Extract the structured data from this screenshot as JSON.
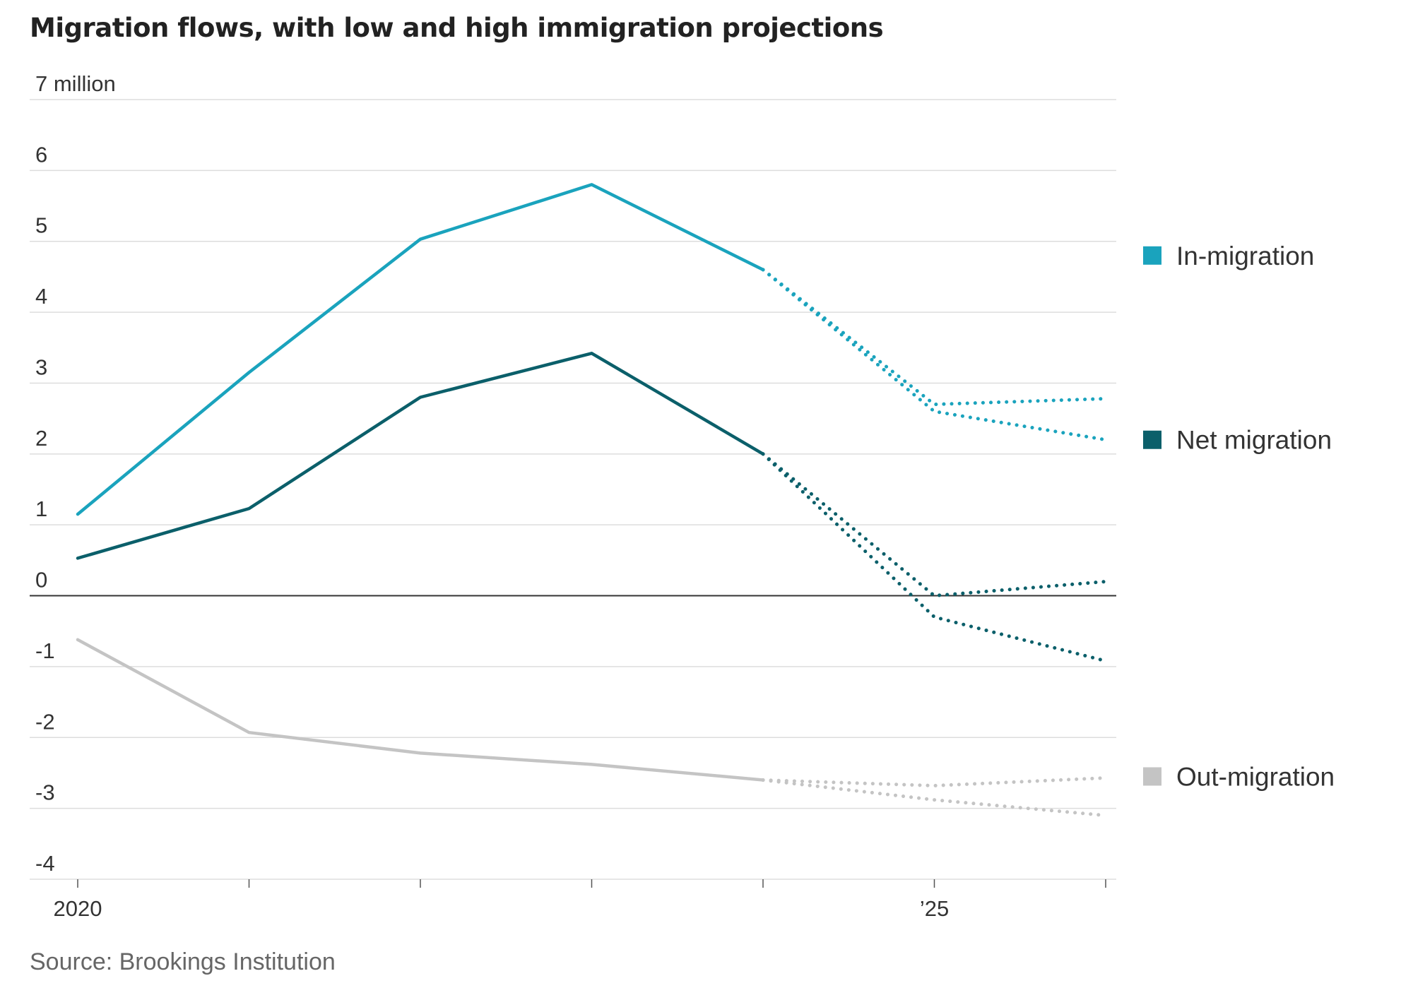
{
  "title": "Migration flows, with low and high immigration projections",
  "source": "Source: Brookings Institution",
  "chart_data": {
    "type": "line",
    "title": "Migration flows, with low and high immigration projections",
    "y_unit": "7 million",
    "ylim": [
      -4,
      7
    ],
    "y_ticks": [
      {
        "value": 7,
        "label": "7 million"
      },
      {
        "value": 6,
        "label": "6"
      },
      {
        "value": 5,
        "label": "5"
      },
      {
        "value": 4,
        "label": "4"
      },
      {
        "value": 3,
        "label": "3"
      },
      {
        "value": 2,
        "label": "2"
      },
      {
        "value": 1,
        "label": "1"
      },
      {
        "value": 0,
        "label": "0"
      },
      {
        "value": -1,
        "label": "-1"
      },
      {
        "value": -2,
        "label": "-2"
      },
      {
        "value": -3,
        "label": "-3"
      },
      {
        "value": -4,
        "label": "-4"
      }
    ],
    "xlim": [
      2020,
      2026
    ],
    "x_ticks": [
      2020,
      2021,
      2022,
      2023,
      2024,
      2025,
      2026
    ],
    "x_tick_labels": [
      {
        "value": 2020,
        "label": "2020"
      },
      {
        "value": 2025,
        "label": "’25"
      }
    ],
    "grid": true,
    "legend_position": "right",
    "series": [
      {
        "name": "In-migration",
        "color": "#1aa3bd",
        "actual": {
          "x": [
            2020,
            2021,
            2022,
            2023,
            2024
          ],
          "y": [
            1.15,
            3.15,
            5.03,
            5.8,
            4.6
          ]
        },
        "projections": [
          {
            "x": [
              2024,
              2025,
              2026
            ],
            "y": [
              4.6,
              2.7,
              2.78
            ]
          },
          {
            "x": [
              2024,
              2025,
              2026
            ],
            "y": [
              4.6,
              2.6,
              2.2
            ]
          }
        ]
      },
      {
        "name": "Net migration",
        "color": "#0b5f6a",
        "actual": {
          "x": [
            2020,
            2021,
            2022,
            2023,
            2024
          ],
          "y": [
            0.53,
            1.23,
            2.8,
            3.42,
            2.0
          ]
        },
        "projections": [
          {
            "x": [
              2024,
              2025,
              2026
            ],
            "y": [
              2.0,
              0.0,
              0.2
            ]
          },
          {
            "x": [
              2024,
              2025,
              2026
            ],
            "y": [
              2.0,
              -0.3,
              -0.92
            ]
          }
        ]
      },
      {
        "name": "Out-migration",
        "color": "#c4c4c4",
        "actual": {
          "x": [
            2020,
            2021,
            2022,
            2023,
            2024
          ],
          "y": [
            -0.62,
            -1.93,
            -2.22,
            -2.38,
            -2.6
          ]
        },
        "projections": [
          {
            "x": [
              2024,
              2025,
              2026
            ],
            "y": [
              -2.6,
              -2.68,
              -2.57
            ]
          },
          {
            "x": [
              2024,
              2025,
              2026
            ],
            "y": [
              -2.6,
              -2.88,
              -3.1
            ]
          }
        ]
      }
    ],
    "legend": [
      {
        "name": "In-migration",
        "color": "#1aa3bd"
      },
      {
        "name": "Net migration",
        "color": "#0b5f6a"
      },
      {
        "name": "Out-migration",
        "color": "#c4c4c4"
      }
    ]
  }
}
